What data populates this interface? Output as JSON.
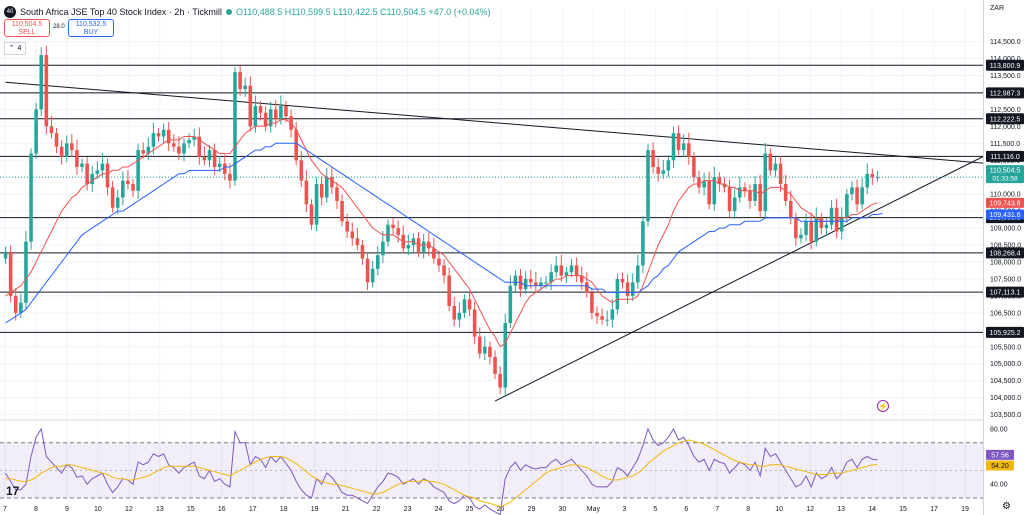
{
  "header": {
    "logo": "40",
    "title": "South Africa JSE Top 40 Stock Index · 2h · Tickmill",
    "ohlc": "O110,488.5 H110,599.5 L110,422.5 C110,504.5 +47.0 (+0.04%)"
  },
  "trade": {
    "sell_price": "110,504.5",
    "sell_label": "SELL",
    "spread": "28.0",
    "buy_price": "110,532.5",
    "buy_label": "BUY"
  },
  "indicator_toggle": "4",
  "currency": "ZAR",
  "tv_logo": "17",
  "colors": {
    "up": "#26a69a",
    "down": "#ef5350",
    "ma_fast": "#ef5350",
    "ma_slow": "#2962ff",
    "rsi": "#7e57c2",
    "rsi_ma": "#f0b90b"
  },
  "chart_data": [
    {
      "type": "candlestick",
      "x_ticks": [
        "7",
        "8",
        "9",
        "10",
        "12",
        "13",
        "15",
        "16",
        "17",
        "18",
        "19",
        "21",
        "22",
        "23",
        "24",
        "25",
        "26",
        "29",
        "30",
        "May",
        "3",
        "5",
        "6",
        "7",
        "8",
        "10",
        "12",
        "13",
        "14",
        "15",
        "17",
        "19"
      ],
      "y_ticks": [
        "114,500.0",
        "114,000.0",
        "113,500.0",
        "113,000.0",
        "112,500.0",
        "112,000.0",
        "111,500.0",
        "111,000.0",
        "110,500.0",
        "110,000.0",
        "109,500.0",
        "109,000.0",
        "108,500.0",
        "108,000.0",
        "107,500.0",
        "107,000.0",
        "106,500.0",
        "106,000.0",
        "105,500.0",
        "105,000.0",
        "104,500.0",
        "104,000.0",
        "103,500.0"
      ],
      "ylim": [
        103400,
        114900
      ],
      "horizontal_levels": [
        "113,800.9",
        "112,987.3",
        "112,222.5",
        "111,116.0",
        "109,309.8",
        "108,268.4",
        "107,113.1",
        "105,925.2"
      ],
      "price_badges": [
        {
          "label": "110,504.5",
          "sub": "01:33:58",
          "color": "#26a69a"
        },
        {
          "label": "109,743.8",
          "color": "#ef5350"
        },
        {
          "label": "109,431.6",
          "color": "#2962ff"
        }
      ],
      "closes": [
        108300,
        107000,
        106500,
        106800,
        108600,
        111200,
        112500,
        114100,
        112000,
        111800,
        111400,
        111100,
        111500,
        111300,
        110800,
        110900,
        110300,
        110600,
        110700,
        110900,
        110200,
        109600,
        109900,
        110400,
        110300,
        110100,
        111300,
        111200,
        111400,
        111800,
        111700,
        111900,
        111500,
        111400,
        111200,
        111500,
        111600,
        111700,
        111100,
        111000,
        111300,
        110800,
        110900,
        110600,
        110400,
        113600,
        113100,
        113200,
        112000,
        112600,
        112400,
        112000,
        112500,
        112200,
        112600,
        112300,
        111900,
        111000,
        110400,
        109700,
        109100,
        110300,
        109900,
        110500,
        110200,
        109800,
        109200,
        108900,
        108700,
        108500,
        108100,
        107400,
        107800,
        108200,
        108600,
        109100,
        109000,
        108800,
        108400,
        108500,
        108700,
        108300,
        108600,
        108400,
        108100,
        107900,
        107600,
        106700,
        106300,
        106500,
        106900,
        106600,
        105800,
        105300,
        105500,
        105200,
        104700,
        104300,
        106200,
        107300,
        107600,
        107200,
        107500,
        107400,
        107300,
        107400,
        107400,
        107700,
        107900,
        107600,
        107700,
        107900,
        107600,
        107400,
        107100,
        106500,
        106400,
        106300,
        106300,
        106600,
        107500,
        107400,
        107000,
        107400,
        107900,
        109200,
        111300,
        110800,
        110600,
        110700,
        111000,
        111800,
        111300,
        111500,
        111100,
        110500,
        110200,
        110400,
        109700,
        110500,
        110300,
        110200,
        109500,
        109900,
        110200,
        110100,
        109800,
        110300,
        109500,
        111200,
        110700,
        110900,
        110300,
        109800,
        109300,
        108700,
        108800,
        109200,
        108600,
        109300,
        109000,
        109100,
        109600,
        108900,
        109300,
        110000,
        110200,
        109700,
        110200,
        110600,
        110500,
        110504.5
      ],
      "ma_fast": [
        107000,
        107100,
        107200,
        107300,
        107500,
        107700,
        108000,
        108300,
        108600,
        108900,
        109200,
        109500,
        109700,
        109900,
        110000,
        110200,
        110300,
        110400,
        110500,
        110600,
        110600,
        110700,
        110700,
        110800,
        110800,
        110900,
        111000,
        111100,
        111200,
        111300,
        111400,
        111500,
        111600,
        111600,
        111600,
        111700,
        111700,
        111700,
        111600,
        111500,
        111400,
        111300,
        111200,
        111200,
        111200,
        111400,
        111600,
        111800,
        111900,
        112000,
        112000,
        112000,
        112100,
        112100,
        112200,
        112200,
        112100,
        111900,
        111600,
        111300,
        111000,
        110800,
        110600,
        110500,
        110400,
        110300,
        110200,
        110000,
        109800,
        109600,
        109400,
        109200,
        109000,
        108900,
        108800,
        108800,
        108800,
        108700,
        108600,
        108600,
        108600,
        108500,
        108500,
        108500,
        108400,
        108300,
        108200,
        108000,
        107800,
        107600,
        107400,
        107200,
        106900,
        106600,
        106300,
        106000,
        105800,
        105500,
        105600,
        105900,
        106200,
        106500,
        106800,
        107000,
        107100,
        107200,
        107300,
        107400,
        107500,
        107500,
        107600,
        107600,
        107600,
        107600,
        107500,
        107400,
        107200,
        107000,
        106900,
        106800,
        106900,
        106900,
        106900,
        106900,
        107000,
        107300,
        107700,
        108100,
        108500,
        108800,
        109100,
        109500,
        109800,
        110000,
        110200,
        110300,
        110300,
        110400,
        110400,
        110400,
        110300,
        110300,
        110200,
        110200,
        110100,
        110100,
        110100,
        110100,
        110000,
        110100,
        110200,
        110200,
        110200,
        110100,
        110000,
        109800,
        109600,
        109500,
        109400,
        109300,
        109200,
        109200,
        109200,
        109200,
        109300,
        109300,
        109400,
        109400,
        109500,
        109600,
        109700,
        109743.8
      ],
      "ma_slow": [
        106200,
        106300,
        106400,
        106500,
        106600,
        106800,
        107000,
        107200,
        107400,
        107600,
        107800,
        108000,
        108200,
        108400,
        108600,
        108800,
        108900,
        109000,
        109100,
        109200,
        109300,
        109400,
        109500,
        109500,
        109600,
        109700,
        109800,
        109900,
        110000,
        110100,
        110200,
        110300,
        110400,
        110500,
        110600,
        110600,
        110700,
        110700,
        110700,
        110700,
        110700,
        110700,
        110700,
        110800,
        110800,
        110900,
        111000,
        111100,
        111200,
        111300,
        111300,
        111400,
        111400,
        111500,
        111500,
        111500,
        111500,
        111500,
        111400,
        111300,
        111200,
        111100,
        111000,
        110900,
        110800,
        110700,
        110600,
        110500,
        110400,
        110300,
        110200,
        110100,
        110000,
        109900,
        109800,
        109700,
        109600,
        109500,
        109400,
        109300,
        109200,
        109100,
        109000,
        108900,
        108800,
        108700,
        108600,
        108500,
        108400,
        108300,
        108200,
        108100,
        108000,
        107900,
        107800,
        107700,
        107600,
        107500,
        107400,
        107400,
        107400,
        107400,
        107300,
        107300,
        107300,
        107300,
        107300,
        107300,
        107300,
        107300,
        107300,
        107300,
        107300,
        107300,
        107300,
        107200,
        107200,
        107200,
        107100,
        107100,
        107100,
        107100,
        107100,
        107100,
        107100,
        107200,
        107300,
        107500,
        107600,
        107800,
        107900,
        108100,
        108300,
        108400,
        108500,
        108600,
        108700,
        108800,
        108900,
        108900,
        109000,
        109000,
        109100,
        109100,
        109100,
        109200,
        109200,
        109200,
        109200,
        109300,
        109300,
        109300,
        109300,
        109300,
        109300,
        109300,
        109200,
        109200,
        109200,
        109200,
        109200,
        109200,
        109200,
        109200,
        109200,
        109200,
        109300,
        109300,
        109300,
        109300,
        109400,
        109400,
        109431.6
      ],
      "trendlines": [
        {
          "from": [
            0,
            113300
          ],
          "to": [
            177,
            111100
          ]
        },
        {
          "from": [
            96,
            103900
          ],
          "to": [
            177,
            110000
          ]
        }
      ]
    },
    {
      "type": "line",
      "name": "RSI",
      "y_ticks": [
        "80.00",
        "40.00"
      ],
      "ylim": [
        30,
        85
      ],
      "band": [
        30,
        70
      ],
      "badges": [
        {
          "label": "57.56",
          "color": "#7e57c2"
        },
        {
          "label": "54.20",
          "color": "#f0b90b"
        }
      ],
      "rsi": [
        48,
        42,
        36,
        36,
        40,
        60,
        74,
        80,
        60,
        56,
        52,
        48,
        54,
        52,
        45,
        46,
        40,
        44,
        46,
        48,
        40,
        34,
        38,
        44,
        43,
        40,
        56,
        54,
        56,
        62,
        60,
        62,
        54,
        52,
        48,
        52,
        54,
        56,
        46,
        44,
        50,
        42,
        44,
        40,
        38,
        78,
        70,
        70,
        54,
        60,
        58,
        52,
        60,
        56,
        60,
        55,
        50,
        42,
        36,
        32,
        30,
        44,
        40,
        48,
        45,
        40,
        34,
        32,
        32,
        30,
        28,
        26,
        32,
        38,
        42,
        48,
        47,
        45,
        40,
        42,
        44,
        40,
        44,
        42,
        38,
        36,
        34,
        28,
        26,
        28,
        32,
        30,
        24,
        22,
        25,
        22,
        20,
        18,
        44,
        52,
        56,
        50,
        54,
        52,
        51,
        52,
        52,
        56,
        58,
        54,
        56,
        58,
        54,
        50,
        46,
        40,
        38,
        38,
        38,
        42,
        52,
        50,
        46,
        52,
        58,
        68,
        80,
        72,
        68,
        70,
        74,
        80,
        72,
        74,
        68,
        60,
        56,
        58,
        50,
        58,
        56,
        55,
        48,
        52,
        56,
        54,
        50,
        56,
        46,
        66,
        60,
        62,
        56,
        50,
        44,
        38,
        40,
        46,
        38,
        48,
        44,
        46,
        52,
        44,
        48,
        56,
        58,
        52,
        58,
        60,
        58,
        57.56
      ],
      "rsi_ma": [
        44,
        44,
        43,
        42,
        42,
        43,
        45,
        48,
        50,
        52,
        53,
        53,
        54,
        54,
        53,
        52,
        51,
        50,
        49,
        48,
        47,
        45,
        44,
        44,
        43,
        43,
        44,
        45,
        46,
        48,
        50,
        52,
        53,
        53,
        53,
        53,
        53,
        53,
        52,
        51,
        50,
        49,
        48,
        47,
        46,
        48,
        50,
        52,
        54,
        56,
        58,
        59,
        60,
        60,
        60,
        59,
        57,
        55,
        52,
        49,
        46,
        44,
        42,
        41,
        40,
        40,
        39,
        38,
        37,
        36,
        35,
        34,
        33,
        33,
        34,
        36,
        38,
        40,
        41,
        42,
        42,
        42,
        43,
        42,
        42,
        41,
        40,
        38,
        36,
        34,
        32,
        31,
        30,
        28,
        27,
        26,
        25,
        24,
        25,
        27,
        30,
        33,
        36,
        39,
        42,
        45,
        48,
        50,
        51,
        52,
        53,
        54,
        54,
        53,
        52,
        50,
        48,
        46,
        44,
        43,
        43,
        44,
        45,
        46,
        48,
        51,
        55,
        58,
        61,
        64,
        66,
        68,
        70,
        71,
        72,
        71,
        70,
        69,
        67,
        65,
        63,
        61,
        59,
        57,
        56,
        55,
        54,
        54,
        53,
        53,
        54,
        54,
        54,
        53,
        52,
        51,
        50,
        49,
        48,
        47,
        47,
        47,
        48,
        48,
        48,
        49,
        50,
        51,
        52,
        53,
        54,
        54.2
      ]
    }
  ]
}
